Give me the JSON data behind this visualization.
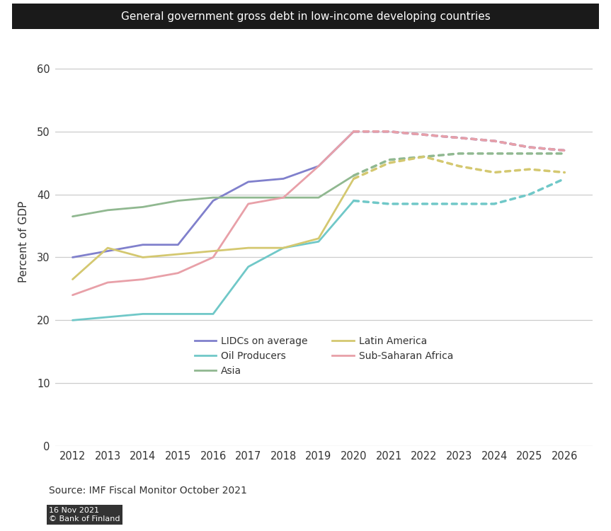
{
  "title": "General government gross debt in low-income developing countries",
  "ylabel": "Percent of GDP",
  "source": "Source: IMF Fiscal Monitor October 2021",
  "watermark_line1": "16 Nov 2021",
  "watermark_line2": "© Bank of Finland",
  "years_solid": [
    2012,
    2013,
    2014,
    2015,
    2016,
    2017,
    2018,
    2019,
    2020
  ],
  "years_dotted": [
    2020,
    2021,
    2022,
    2023,
    2024,
    2025,
    2026
  ],
  "series": {
    "LIDCs on average": {
      "color": "#8080CC",
      "solid": [
        30.0,
        31.0,
        32.0,
        32.0,
        39.0,
        42.0,
        42.5,
        44.5,
        50.0
      ],
      "dotted": [
        50.0,
        50.0,
        49.5,
        49.0,
        48.5,
        47.5,
        47.0
      ]
    },
    "Asia": {
      "color": "#90B890",
      "solid": [
        36.5,
        37.5,
        38.0,
        39.0,
        39.5,
        39.5,
        39.5,
        39.5,
        43.0
      ],
      "dotted": [
        43.0,
        45.5,
        46.0,
        46.5,
        46.5,
        46.5,
        46.5
      ]
    },
    "Sub-Saharan Africa": {
      "color": "#E8A0A8",
      "solid": [
        24.0,
        26.0,
        26.5,
        27.5,
        30.0,
        38.5,
        39.5,
        44.5,
        50.0
      ],
      "dotted": [
        50.0,
        50.0,
        49.5,
        49.0,
        48.5,
        47.5,
        47.0
      ]
    },
    "Oil Producers": {
      "color": "#70C8C8",
      "solid": [
        20.0,
        20.5,
        21.0,
        21.0,
        21.0,
        28.5,
        31.5,
        32.5,
        39.0
      ],
      "dotted": [
        39.0,
        38.5,
        38.5,
        38.5,
        38.5,
        40.0,
        42.5
      ]
    },
    "Latin America": {
      "color": "#D4C870",
      "solid": [
        26.5,
        31.5,
        30.0,
        30.5,
        31.0,
        31.5,
        31.5,
        33.0,
        42.5
      ],
      "dotted": [
        42.5,
        45.0,
        46.0,
        44.5,
        43.5,
        44.0,
        43.5
      ]
    }
  },
  "ylim": [
    0,
    65
  ],
  "yticks": [
    0,
    10,
    20,
    30,
    40,
    50,
    60
  ],
  "xlim": [
    2011.5,
    2026.8
  ],
  "fig_bg_color": "#ffffff",
  "plot_bg_color": "#ffffff",
  "title_bar_color": "#1a1a1a",
  "title_text_color": "#ffffff",
  "text_color": "#333333",
  "grid_color": "#cccccc",
  "source_color": "#333333"
}
